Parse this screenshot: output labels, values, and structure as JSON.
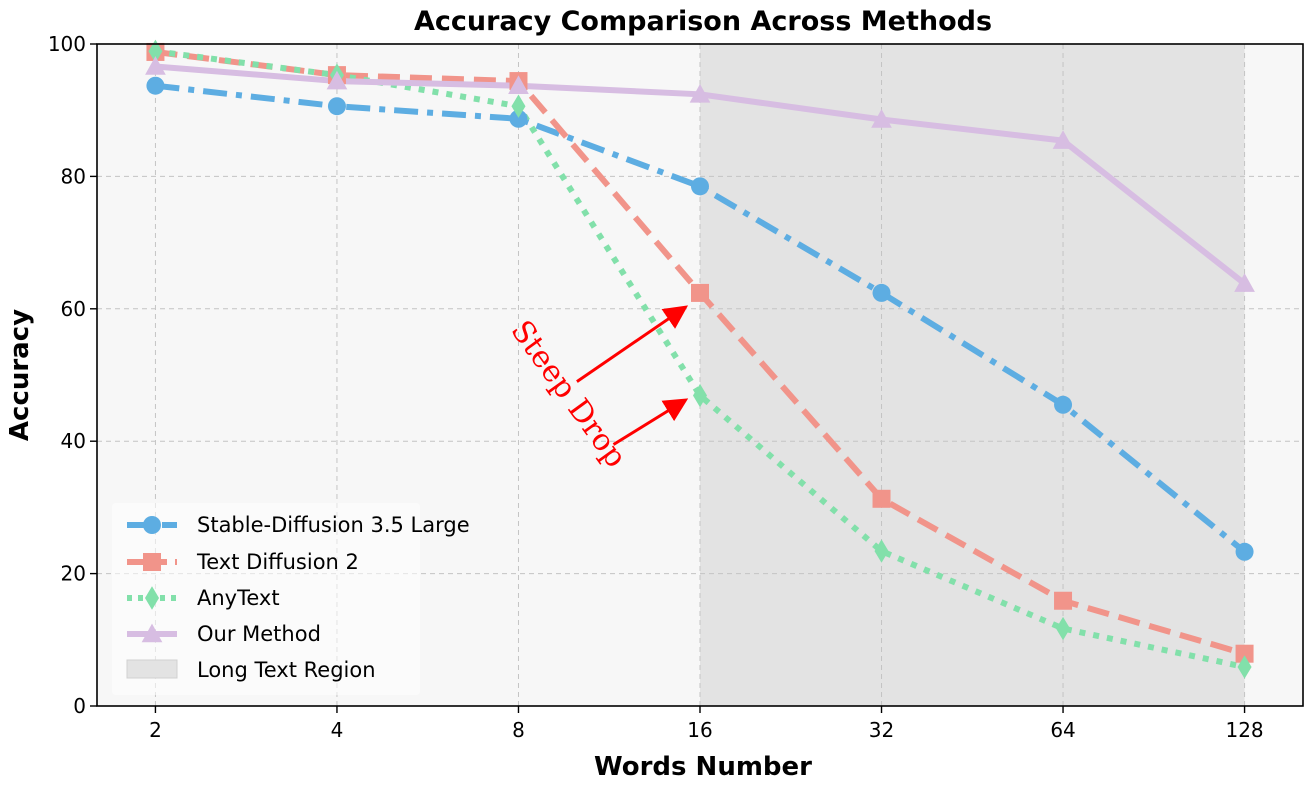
{
  "chart_data": {
    "type": "line",
    "title": "Accuracy Comparison Across Methods",
    "xlabel": "Words Number",
    "ylabel": "Accuracy",
    "x": [
      2,
      4,
      8,
      16,
      32,
      64,
      128
    ],
    "x_tick_labels": [
      "2",
      "4",
      "8",
      "16",
      "32",
      "64",
      "128"
    ],
    "x_scale": "log2",
    "xlim": [
      1.6,
      160
    ],
    "ylim": [
      0,
      100
    ],
    "y_ticks": [
      0,
      20,
      40,
      60,
      80,
      100
    ],
    "y_tick_labels": [
      "0",
      "20",
      "40",
      "60",
      "80",
      "100"
    ],
    "grid": true,
    "legend_position": "lower-left",
    "series": [
      {
        "name": "Stable-Diffusion 3.5 Large",
        "values": [
          93.7,
          90.6,
          88.7,
          78.5,
          62.4,
          45.5,
          23.3
        ],
        "color": "#5dade2",
        "marker": "circle",
        "line_style": "dash-dot"
      },
      {
        "name": "Text Diffusion 2",
        "values": [
          98.8,
          95.3,
          94.4,
          62.4,
          31.3,
          15.9,
          7.9
        ],
        "color": "#f1948a",
        "marker": "square",
        "line_style": "dashed"
      },
      {
        "name": "AnyText",
        "values": [
          98.9,
          95.3,
          90.6,
          46.9,
          23.4,
          11.7,
          5.9
        ],
        "color": "#82e0aa",
        "marker": "diamond",
        "line_style": "dotted"
      },
      {
        "name": "Our Method",
        "values": [
          96.6,
          94.4,
          93.7,
          92.4,
          88.6,
          85.4,
          63.8
        ],
        "color": "#d7bde2",
        "marker": "triangle",
        "line_style": "solid"
      }
    ],
    "shaded_region": {
      "label": "Long Text Region",
      "x_from": 16,
      "x_to": 128,
      "color": "#e3e3e3"
    },
    "annotation": {
      "text": "Steep Drop",
      "color": "#ff0000",
      "arrows": [
        {
          "from": [
            10,
            49
          ],
          "to": [
            15,
            60
          ]
        },
        {
          "from": [
            11.5,
            39.5
          ],
          "to": [
            15,
            46
          ]
        }
      ]
    }
  },
  "colors": {
    "plot_background": "#f7f7f7",
    "grid": "#c4c4c4",
    "annotation": "#ff0000"
  }
}
